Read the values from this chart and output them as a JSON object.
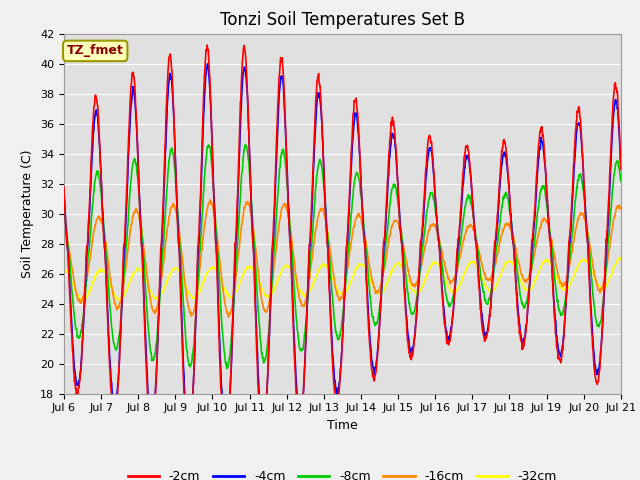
{
  "title": "Tonzi Soil Temperatures Set B",
  "xlabel": "Time",
  "ylabel": "Soil Temperature (C)",
  "ylim": [
    18,
    42
  ],
  "n_days": 15,
  "tick_labels": [
    "Jul 6",
    "Jul 7",
    "Jul 8",
    "Jul 9",
    "Jul 10",
    "Jul 11",
    "Jul 12",
    "Jul 13",
    "Jul 14",
    "Jul 15",
    "Jul 16",
    "Jul 17",
    "Jul 18",
    "Jul 19",
    "Jul 20",
    "Jul 21"
  ],
  "annotation_text": "TZ_fmet",
  "colors": {
    "-2cm": "#ff0000",
    "-4cm": "#0000ff",
    "-8cm": "#00cc00",
    "-16cm": "#ff8800",
    "-32cm": "#ffff00"
  },
  "legend_labels": [
    "-2cm",
    "-4cm",
    "-8cm",
    "-16cm",
    "-32cm"
  ],
  "fig_facecolor": "#f0f0f0",
  "plot_facecolor": "#e0e0e0",
  "grid_color": "#ffffff",
  "title_fontsize": 12,
  "axis_fontsize": 9,
  "tick_fontsize": 8,
  "legend_fontsize": 9,
  "linewidth": 1.2
}
